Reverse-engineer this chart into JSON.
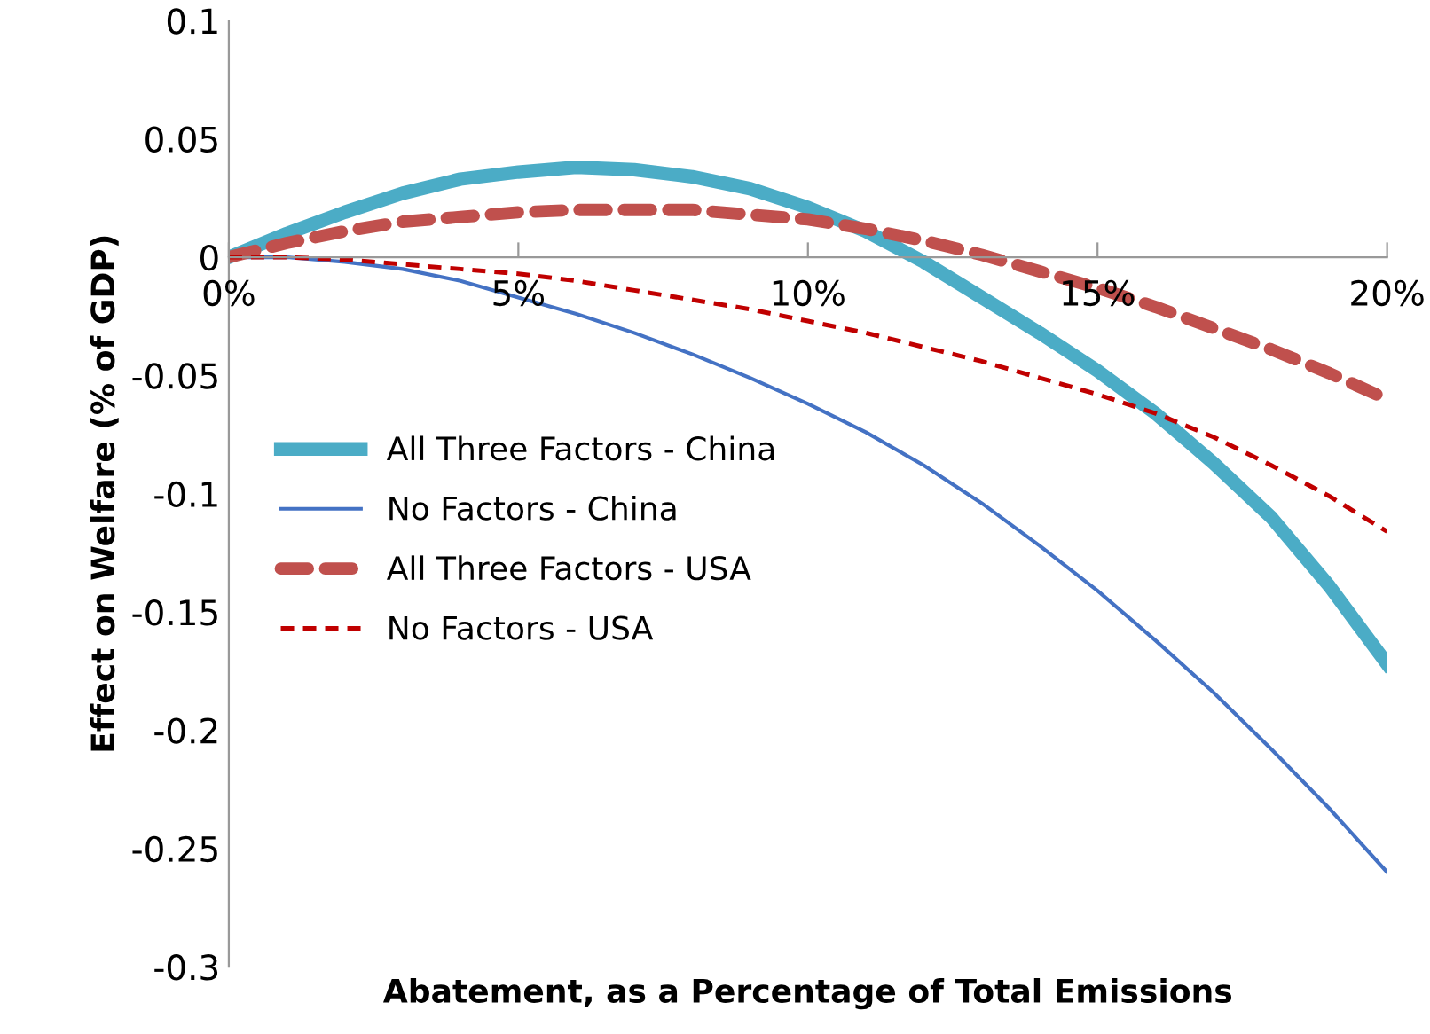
{
  "chart_data": {
    "type": "line",
    "xlabel": "Abatement, as a Percentage of Total Emissions",
    "ylabel": "Effect on Welfare (% of GDP)",
    "x": [
      0,
      1,
      2,
      3,
      4,
      5,
      6,
      7,
      8,
      9,
      10,
      11,
      12,
      13,
      14,
      15,
      16,
      17,
      18,
      19,
      20
    ],
    "series": [
      {
        "name": "All Three Factors - China",
        "color": "#4bacc6",
        "line_style": "solid",
        "values": [
          0,
          0.01,
          0.019,
          0.027,
          0.033,
          0.036,
          0.038,
          0.037,
          0.034,
          0.029,
          0.021,
          0.011,
          -0.002,
          -0.017,
          -0.032,
          -0.048,
          -0.066,
          -0.087,
          -0.11,
          -0.139,
          -0.172
        ]
      },
      {
        "name": "No Factors - China",
        "color": "#4472c4",
        "line_style": "solid",
        "values": [
          0,
          0,
          -0.002,
          -0.005,
          -0.01,
          -0.017,
          -0.024,
          -0.032,
          -0.041,
          -0.051,
          -0.062,
          -0.074,
          -0.088,
          -0.104,
          -0.122,
          -0.141,
          -0.162,
          -0.184,
          -0.208,
          -0.233,
          -0.26
        ]
      },
      {
        "name": "All Three Factors - USA",
        "color": "#c0504d",
        "line_style": "dashed",
        "values": [
          0,
          0.006,
          0.011,
          0.015,
          0.017,
          0.019,
          0.02,
          0.02,
          0.02,
          0.018,
          0.016,
          0.012,
          0.007,
          0.001,
          -0.006,
          -0.013,
          -0.021,
          -0.03,
          -0.039,
          -0.049,
          -0.06
        ]
      },
      {
        "name": "No Factors - USA",
        "color": "#c00000",
        "line_style": "dashed",
        "values": [
          0,
          0,
          -0.001,
          -0.003,
          -0.005,
          -0.007,
          -0.01,
          -0.014,
          -0.018,
          -0.022,
          -0.027,
          -0.032,
          -0.038,
          -0.044,
          -0.051,
          -0.058,
          -0.066,
          -0.076,
          -0.088,
          -0.101,
          -0.116
        ]
      }
    ],
    "xlim": [
      0,
      20
    ],
    "xticks": [
      {
        "value": 0,
        "label": "0%"
      },
      {
        "value": 5,
        "label": "5%"
      },
      {
        "value": 10,
        "label": "10%"
      },
      {
        "value": 15,
        "label": "15%"
      },
      {
        "value": 20,
        "label": "20%"
      }
    ],
    "ylim": [
      -0.3,
      0.1
    ],
    "yticks": [
      {
        "value": -0.3,
        "label": "-0.3"
      },
      {
        "value": -0.25,
        "label": "-0.25"
      },
      {
        "value": -0.2,
        "label": "-0.2"
      },
      {
        "value": -0.15,
        "label": "-0.15"
      },
      {
        "value": -0.1,
        "label": "-0.1"
      },
      {
        "value": -0.05,
        "label": "-0.05"
      },
      0,
      {
        "value": 0.05,
        "label": "0.05"
      },
      {
        "value": 0.1,
        "label": "0.1"
      }
    ],
    "grid": false,
    "legend": "left",
    "marker": "none"
  }
}
